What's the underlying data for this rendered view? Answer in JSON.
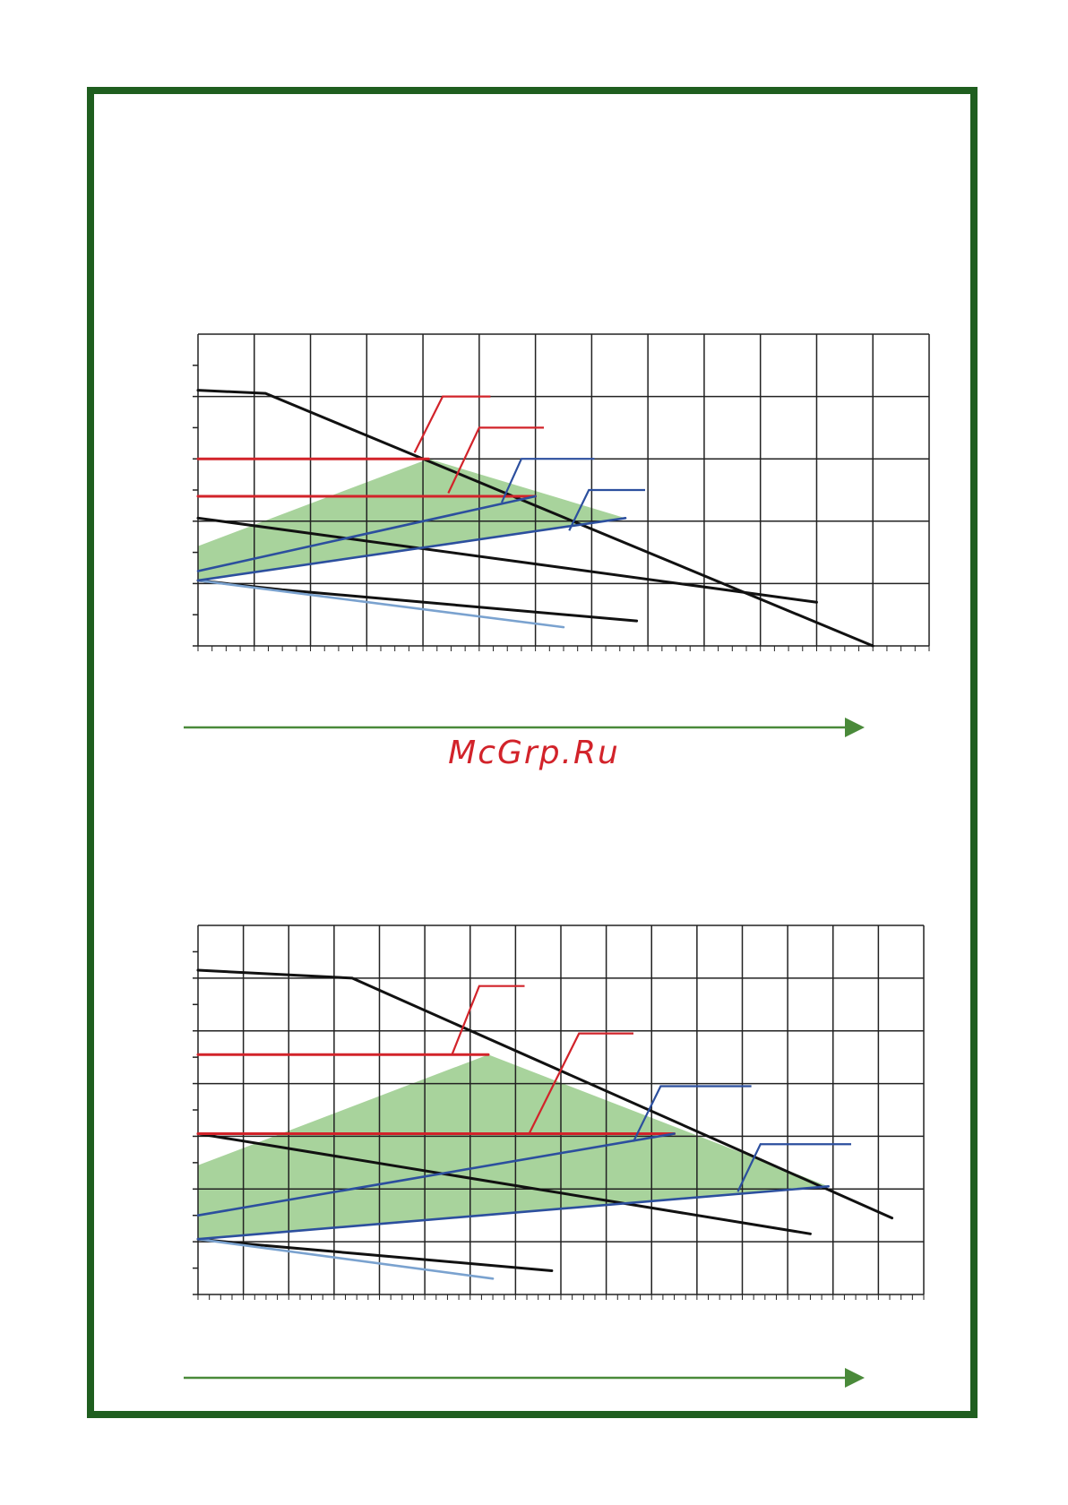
{
  "colors": {
    "frame": "#1f5e1f",
    "grid": "#222222",
    "curve": "#111111",
    "red": "#d2232a",
    "blue": "#2c4f9e",
    "light_blue": "#7aa2cf",
    "fill": "#a8d39c",
    "arrow": "#4a8a3a"
  },
  "watermark": "McGrp.Ru",
  "chart_data": [
    {
      "type": "line",
      "title": "",
      "xlabel": "",
      "ylabel": "",
      "xlim": [
        0,
        13
      ],
      "ylim": [
        0,
        5
      ],
      "grid": true,
      "legend": "none",
      "series": [
        {
          "color": "curve",
          "x": [
            0,
            1.2,
            12
          ],
          "y": [
            4.1,
            4.05,
            0
          ]
        },
        {
          "color": "curve",
          "x": [
            0,
            11
          ],
          "y": [
            2.05,
            0.7
          ]
        },
        {
          "color": "curve",
          "x": [
            0,
            1.5,
            7.8
          ],
          "y": [
            1.05,
            0.9,
            0.4
          ]
        },
        {
          "color": "light_blue",
          "x": [
            0,
            6.5
          ],
          "y": [
            1.05,
            0.3
          ]
        },
        {
          "color": "red",
          "x": [
            0,
            4.1
          ],
          "y": [
            3.0,
            3.0
          ]
        },
        {
          "color": "red",
          "x": [
            0,
            6.0
          ],
          "y": [
            2.4,
            2.4
          ]
        },
        {
          "color": "blue",
          "x": [
            0,
            6.0
          ],
          "y": [
            1.2,
            2.4
          ]
        },
        {
          "color": "blue",
          "x": [
            0,
            7.6
          ],
          "y": [
            1.05,
            2.05
          ]
        }
      ],
      "filled_region": {
        "color": "fill",
        "x": [
          0,
          4.1,
          7.6,
          0
        ],
        "y": [
          1.6,
          3.0,
          2.05,
          1.05
        ]
      },
      "callouts": [
        {
          "color": "red",
          "points": [
            [
              3.85,
              3.1
            ],
            [
              4.35,
              4.0
            ],
            [
              5.2,
              4.0
            ]
          ]
        },
        {
          "color": "red",
          "points": [
            [
              4.45,
              2.45
            ],
            [
              5.0,
              3.5
            ],
            [
              6.15,
              3.5
            ]
          ]
        },
        {
          "color": "blue",
          "points": [
            [
              5.4,
              2.3
            ],
            [
              5.75,
              3.0
            ],
            [
              7.05,
              3.0
            ]
          ]
        },
        {
          "color": "blue",
          "points": [
            [
              6.6,
              1.85
            ],
            [
              6.95,
              2.5
            ],
            [
              7.95,
              2.5
            ]
          ]
        }
      ]
    },
    {
      "type": "line",
      "title": "",
      "xlabel": "",
      "ylabel": "",
      "xlim": [
        0,
        16
      ],
      "ylim": [
        0,
        7
      ],
      "grid": true,
      "legend": "none",
      "series": [
        {
          "color": "curve",
          "x": [
            0,
            3.4,
            15.3
          ],
          "y": [
            6.15,
            6.0,
            1.45
          ]
        },
        {
          "color": "curve",
          "x": [
            0,
            13.5
          ],
          "y": [
            3.05,
            1.15
          ]
        },
        {
          "color": "curve",
          "x": [
            0,
            1.2,
            7.8
          ],
          "y": [
            1.05,
            0.95,
            0.45
          ]
        },
        {
          "color": "light_blue",
          "x": [
            0,
            6.5
          ],
          "y": [
            1.05,
            0.3
          ]
        },
        {
          "color": "red",
          "x": [
            0,
            6.4
          ],
          "y": [
            4.55,
            4.55
          ]
        },
        {
          "color": "red",
          "x": [
            0,
            10.5
          ],
          "y": [
            3.05,
            3.05
          ]
        },
        {
          "color": "blue",
          "x": [
            0,
            10.5
          ],
          "y": [
            1.5,
            3.05
          ]
        },
        {
          "color": "blue",
          "x": [
            0,
            13.9
          ],
          "y": [
            1.05,
            2.05
          ]
        }
      ],
      "filled_region": {
        "color": "fill",
        "x": [
          0,
          6.4,
          13.9,
          0
        ],
        "y": [
          2.45,
          4.55,
          2.05,
          1.05
        ]
      },
      "callouts": [
        {
          "color": "red",
          "points": [
            [
              5.6,
              4.55
            ],
            [
              6.2,
              5.85
            ],
            [
              7.2,
              5.85
            ]
          ]
        },
        {
          "color": "red",
          "points": [
            [
              7.3,
              3.05
            ],
            [
              8.4,
              4.95
            ],
            [
              9.6,
              4.95
            ]
          ]
        },
        {
          "color": "blue",
          "points": [
            [
              9.6,
              2.9
            ],
            [
              10.2,
              3.95
            ],
            [
              12.2,
              3.95
            ]
          ]
        },
        {
          "color": "blue",
          "points": [
            [
              11.9,
              1.95
            ],
            [
              12.4,
              2.85
            ],
            [
              14.4,
              2.85
            ]
          ]
        }
      ]
    }
  ]
}
